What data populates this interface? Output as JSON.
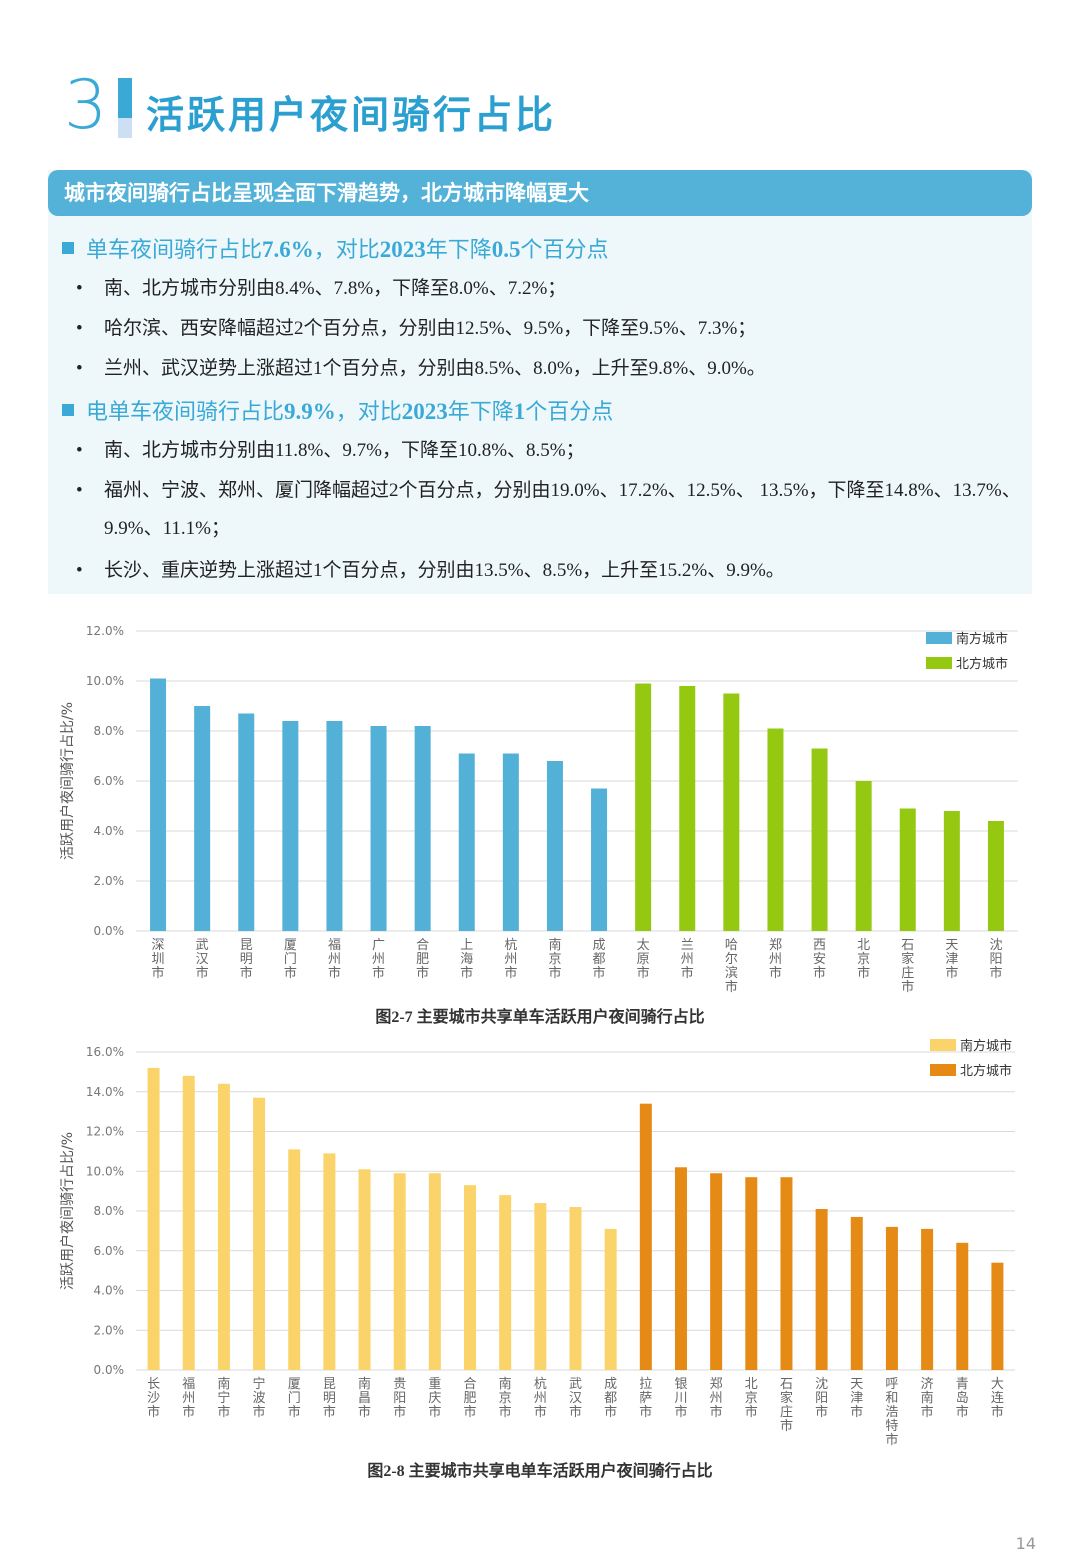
{
  "section": {
    "number": "3",
    "title": "活跃用户夜间骑行占比",
    "accent": "#3aa9d6"
  },
  "callout": {
    "heading": "城市夜间骑行占比呈现全面下滑趋势，北方城市降幅更大",
    "groups": [
      {
        "headline_pre": "单车夜间骑行占比",
        "headline_val": "7.6%",
        "headline_mid": "，对比",
        "headline_year": "2023",
        "headline_mid2": "年下降",
        "headline_delta": "0.5",
        "headline_post": "个百分点",
        "bullets": [
          "南、北方城市分别由8.4%、7.8%，下降至8.0%、7.2%；",
          "哈尔滨、西安降幅超过2个百分点，分别由12.5%、9.5%，下降至9.5%、7.3%；",
          "兰州、武汉逆势上涨超过1个百分点，分别由8.5%、8.0%，上升至9.8%、9.0%。"
        ]
      },
      {
        "headline_pre": "电单车夜间骑行占比",
        "headline_val": "9.9%",
        "headline_mid": "，对比",
        "headline_year": "2023",
        "headline_mid2": "年下降",
        "headline_delta": "1",
        "headline_post": "个百分点",
        "bullets": [
          "南、北方城市分别由11.8%、9.7%，下降至10.8%、8.5%；",
          "福州、宁波、郑州、厦门降幅超过2个百分点，分别由19.0%、17.2%、12.5%、 13.5%，下降至14.8%、13.7%、9.9%、11.1%；",
          "长沙、重庆逆势上涨超过1个百分点，分别由13.5%、8.5%，上升至15.2%、9.9%。"
        ]
      }
    ]
  },
  "chart_data": [
    {
      "type": "bar",
      "caption": "图2-7 主要城市共享单车活跃用户夜间骑行占比",
      "ylabel": "活跃用户夜间骑行占比/%",
      "ylim": [
        0,
        12
      ],
      "yticks": [
        "0.0%",
        "2.0%",
        "4.0%",
        "6.0%",
        "8.0%",
        "10.0%",
        "12.0%"
      ],
      "grid": true,
      "legend_position": "top-right",
      "series": [
        {
          "name": "南方城市",
          "color": "#53b0d6",
          "categories": [
            "深圳市",
            "武汉市",
            "昆明市",
            "厦门市",
            "福州市",
            "广州市",
            "合肥市",
            "上海市",
            "杭州市",
            "南京市",
            "成都市"
          ],
          "values": [
            10.1,
            9.0,
            8.7,
            8.4,
            8.4,
            8.2,
            8.2,
            7.1,
            7.1,
            6.8,
            5.7
          ]
        },
        {
          "name": "北方城市",
          "color": "#95c911",
          "categories": [
            "太原市",
            "兰州市",
            "哈尔滨市",
            "郑州市",
            "西安市",
            "北京市",
            "石家庄市",
            "天津市",
            "沈阳市"
          ],
          "values": [
            9.9,
            9.8,
            9.5,
            8.1,
            7.3,
            6.0,
            4.9,
            4.8,
            4.4
          ]
        }
      ]
    },
    {
      "type": "bar",
      "caption": "图2-8 主要城市共享电单车活跃用户夜间骑行占比",
      "ylabel": "活跃用户夜间骑行占比/%",
      "ylim": [
        0,
        16
      ],
      "yticks": [
        "0.0%",
        "2.0%",
        "4.0%",
        "6.0%",
        "8.0%",
        "10.0%",
        "12.0%",
        "14.0%",
        "16.0%"
      ],
      "grid": true,
      "legend_position": "top-right",
      "series": [
        {
          "name": "南方城市",
          "color": "#fad46a",
          "categories": [
            "长沙市",
            "福州市",
            "南宁市",
            "宁波市",
            "厦门市",
            "昆明市",
            "南昌市",
            "贵阳市",
            "重庆市",
            "合肥市",
            "南京市",
            "杭州市",
            "武汉市",
            "成都市"
          ],
          "values": [
            15.2,
            14.8,
            14.4,
            13.7,
            11.1,
            10.9,
            10.1,
            9.9,
            9.9,
            9.3,
            8.8,
            8.4,
            8.2,
            7.1
          ]
        },
        {
          "name": "北方城市",
          "color": "#e68a16",
          "categories": [
            "拉萨市",
            "银川市",
            "郑州市",
            "北京市",
            "石家庄市",
            "沈阳市",
            "天津市",
            "呼和浩特市",
            "济南市",
            "青岛市",
            "大连市"
          ],
          "values": [
            13.4,
            10.2,
            9.9,
            9.7,
            9.7,
            8.1,
            7.7,
            7.2,
            7.1,
            6.4,
            5.4
          ]
        }
      ]
    }
  ],
  "page_number": "14"
}
